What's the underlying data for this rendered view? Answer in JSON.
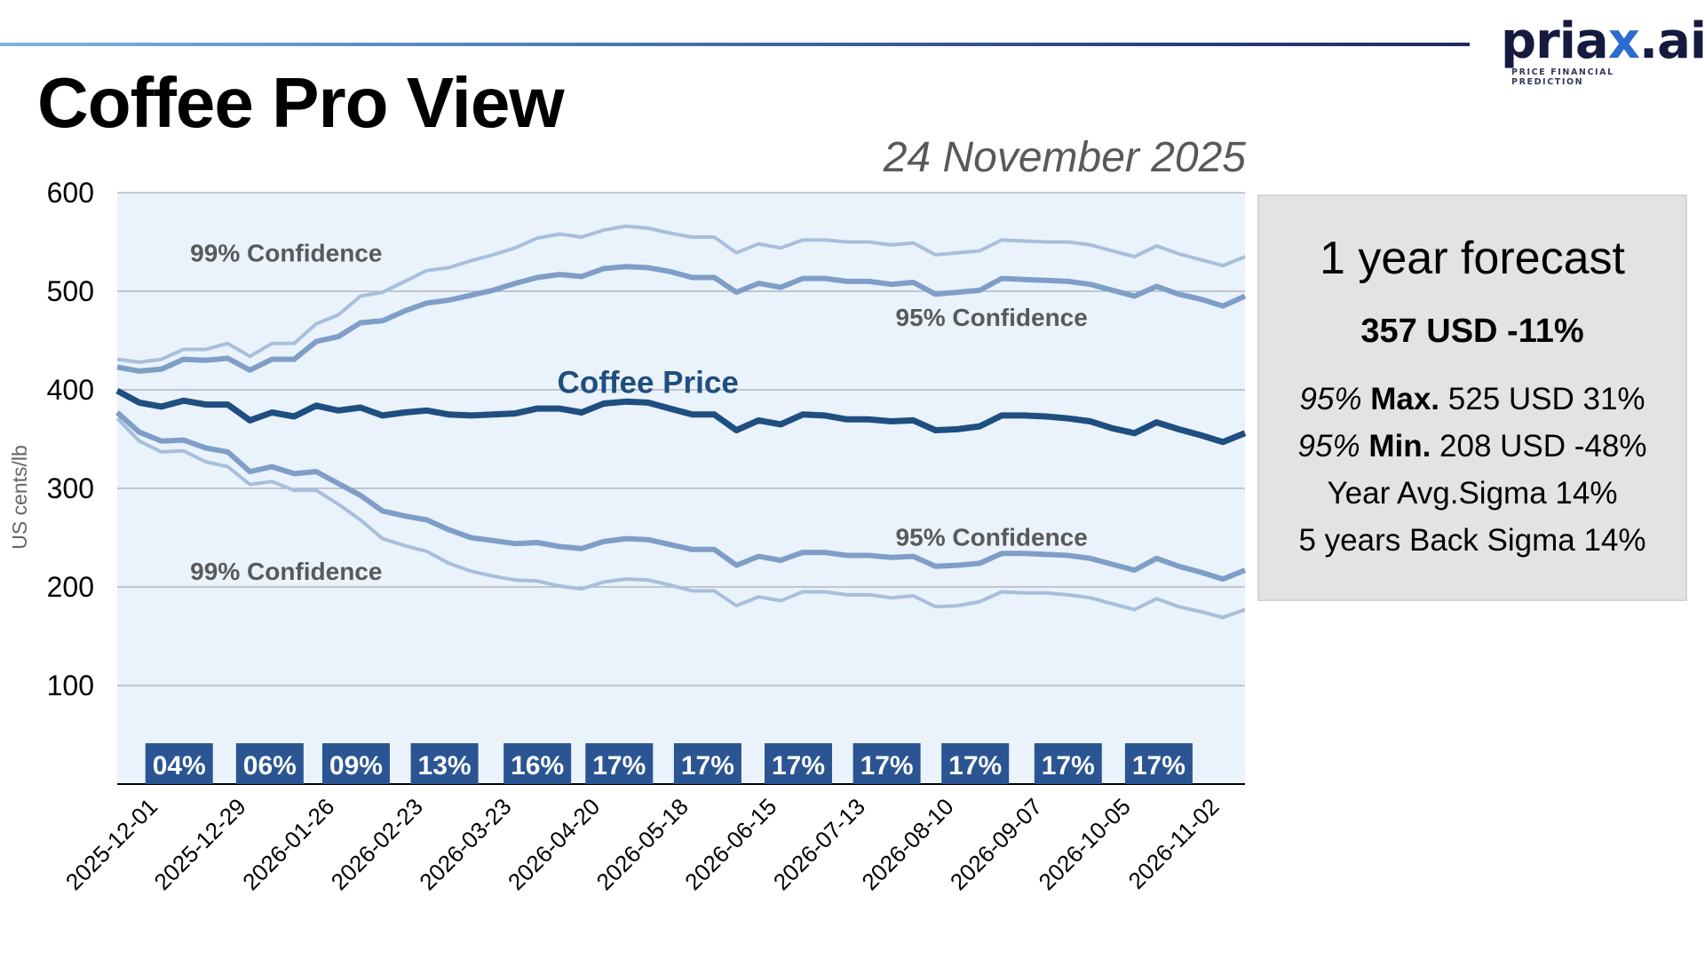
{
  "header": {
    "title": "Coffee Pro View",
    "date": "24 November 2025",
    "logo": {
      "word_part1": "pria",
      "word_x": "x",
      "word_part2": ".ai",
      "tagline": "PRICE FINANCIAL PREDICTION",
      "accent_color": "#2a6bd1",
      "text_color": "#151a3f"
    }
  },
  "forecast_panel": {
    "title": "1 year forecast",
    "headline": "357 USD -11%",
    "max_line": {
      "prefix": "95%",
      "label": "Max.",
      "value": "525 USD 31%"
    },
    "min_line": {
      "prefix": "95%",
      "label": "Min.",
      "value": "208 USD -48%"
    },
    "year_sigma": "Year Avg.Sigma 14%",
    "back_sigma": "5 years Back Sigma 14%"
  },
  "chart_data": {
    "type": "line",
    "title": "Coffee Pro View",
    "xlabel": "",
    "ylabel": "US cents/lb",
    "ylim": [
      0,
      600
    ],
    "yticks": [
      100,
      200,
      300,
      400,
      500,
      600
    ],
    "grid": true,
    "x_start": "2025-11-24",
    "x_step": "1 week",
    "x_tick_labels": [
      "2025-12-01",
      "2025-12-29",
      "2026-01-26",
      "2026-02-23",
      "2026-03-23",
      "2026-04-20",
      "2026-05-18",
      "2026-06-15",
      "2026-07-13",
      "2026-08-10",
      "2026-09-07",
      "2026-10-05",
      "2026-11-02"
    ],
    "x_tick_indices": [
      1,
      5,
      9,
      13,
      17,
      21,
      25,
      29,
      33,
      37,
      41,
      45,
      49
    ],
    "colors": {
      "price": "#1f4e80",
      "ci95": "#7f9ec7",
      "ci99": "#a8bfdb",
      "background": "#eaf2fc",
      "badge": "#2a5592"
    },
    "series": [
      {
        "name": "Coffee Price",
        "role": "price",
        "values": [
          399,
          387,
          383,
          389,
          385,
          385,
          369,
          377,
          373,
          384,
          379,
          382,
          374,
          377,
          379,
          375,
          374,
          375,
          376,
          381,
          381,
          377,
          386,
          388,
          387,
          381,
          375,
          375,
          359,
          369,
          365,
          375,
          374,
          370,
          370,
          368,
          369,
          359,
          360,
          363,
          374,
          374,
          373,
          371,
          368,
          361,
          356,
          367,
          360,
          354,
          347,
          356
        ]
      },
      {
        "name": "95% Confidence Upper",
        "role": "ci95",
        "values": [
          423,
          419,
          421,
          431,
          430,
          432,
          420,
          431,
          431,
          449,
          454,
          468,
          470,
          480,
          488,
          491,
          496,
          501,
          508,
          514,
          517,
          515,
          523,
          525,
          524,
          520,
          514,
          514,
          499,
          508,
          504,
          513,
          513,
          510,
          510,
          507,
          509,
          497,
          499,
          501,
          513,
          512,
          511,
          510,
          507,
          501,
          495,
          505,
          497,
          492,
          485,
          495
        ]
      },
      {
        "name": "95% Confidence Lower",
        "role": "ci95",
        "values": [
          377,
          357,
          348,
          349,
          341,
          337,
          317,
          322,
          315,
          317,
          305,
          293,
          277,
          272,
          268,
          258,
          250,
          247,
          244,
          245,
          241,
          239,
          246,
          249,
          248,
          243,
          238,
          238,
          222,
          231,
          227,
          235,
          235,
          232,
          232,
          230,
          231,
          221,
          222,
          224,
          234,
          234,
          233,
          232,
          229,
          223,
          217,
          229,
          221,
          215,
          208,
          217
        ]
      },
      {
        "name": "99% Confidence Upper",
        "role": "ci99",
        "values": [
          431,
          428,
          431,
          441,
          441,
          447,
          434,
          447,
          447,
          467,
          476,
          495,
          499,
          510,
          521,
          524,
          531,
          537,
          544,
          554,
          558,
          555,
          562,
          566,
          564,
          559,
          555,
          555,
          539,
          548,
          544,
          552,
          552,
          550,
          550,
          547,
          549,
          537,
          539,
          541,
          552,
          551,
          550,
          550,
          547,
          541,
          535,
          546,
          538,
          532,
          526,
          535
        ]
      },
      {
        "name": "99% Confidence Lower",
        "role": "ci99",
        "values": [
          371,
          348,
          337,
          338,
          327,
          322,
          304,
          307,
          298,
          298,
          284,
          268,
          249,
          242,
          236,
          224,
          216,
          211,
          207,
          206,
          201,
          198,
          205,
          208,
          207,
          202,
          196,
          196,
          181,
          190,
          186,
          195,
          195,
          192,
          192,
          189,
          191,
          180,
          181,
          185,
          195,
          194,
          194,
          192,
          189,
          183,
          177,
          188,
          180,
          175,
          169,
          177
        ]
      }
    ],
    "annotations": [
      {
        "text": "99% Confidence",
        "near": "upper-99-band",
        "at_index": 3.3,
        "value": 530
      },
      {
        "text": "99% Confidence",
        "near": "lower-99-band",
        "at_index": 3.3,
        "value": 207
      },
      {
        "text": "95% Confidence",
        "near": "upper-95-band",
        "at_index": 35.2,
        "value": 465
      },
      {
        "text": "95% Confidence",
        "near": "lower-95-band",
        "at_index": 35.2,
        "value": 242
      },
      {
        "text": "Coffee Price",
        "near": "price-line",
        "at_index": 19.9,
        "value": 397
      }
    ],
    "volatility_badges": [
      "04%",
      "06%",
      "09%",
      "13%",
      "16%",
      "17%",
      "17%",
      "17%",
      "17%",
      "17%",
      "17%",
      "17%"
    ],
    "volatility_badge_indices": [
      2.8,
      6.9,
      10.8,
      14.8,
      19,
      22.7,
      26.7,
      30.8,
      34.8,
      38.8,
      43,
      47.1
    ]
  }
}
